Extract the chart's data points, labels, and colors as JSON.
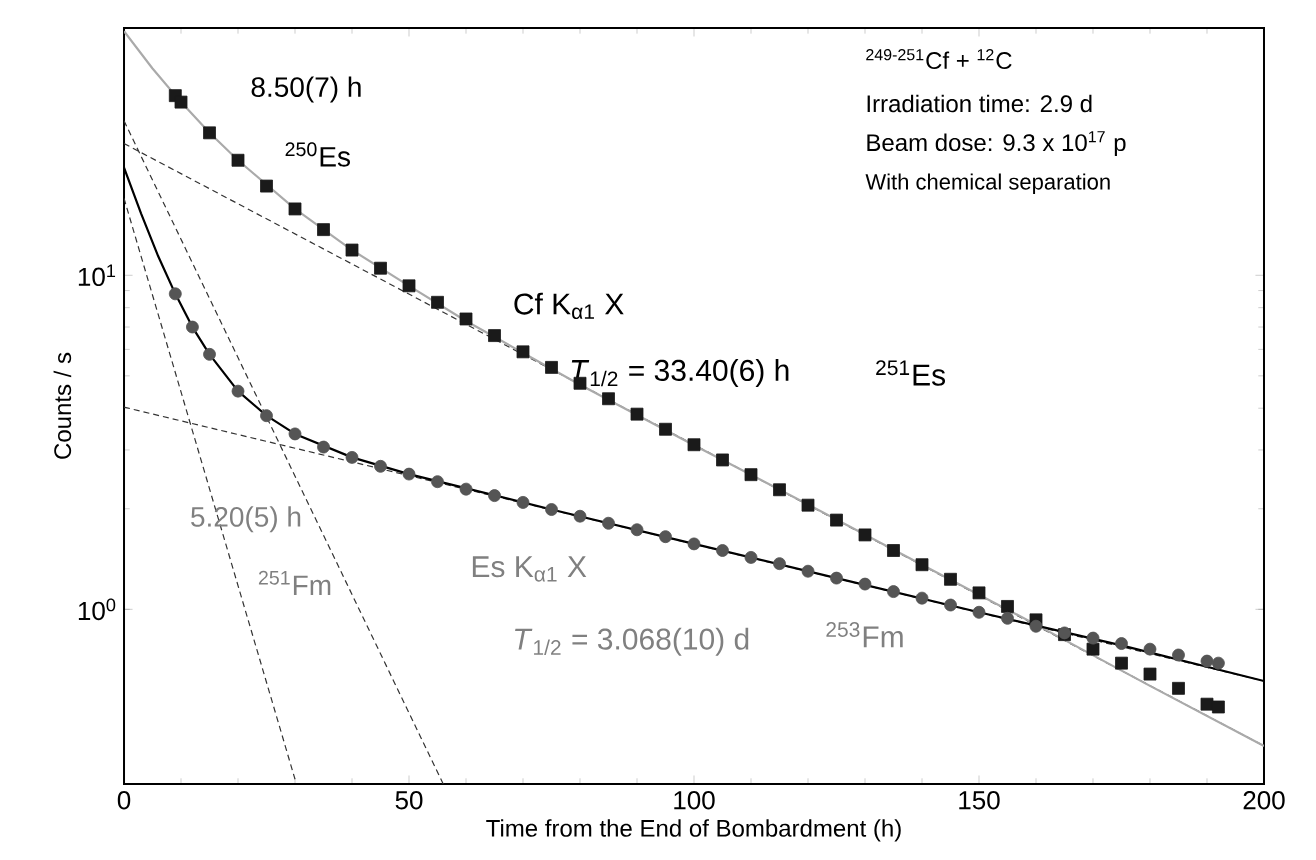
{
  "chart_data": {
    "type": "scatter",
    "xlabel": "Time from the End of Bombardment (h)",
    "ylabel": "Counts / s",
    "log": "y",
    "xlim": [
      0,
      200
    ],
    "ylim": [
      0.3,
      55
    ],
    "xticks": [
      0,
      50,
      100,
      150,
      200
    ],
    "yticks": [
      {
        "value": 1,
        "label": "10$^{0}$"
      },
      {
        "value": 10,
        "label": "10$^{1}$"
      }
    ],
    "series": [
      {
        "type": "line",
        "line_style": "dashed",
        "color": "#333333",
        "x": [
          0,
          56
        ],
        "values": [
          29,
          0.3
        ]
      },
      {
        "type": "line",
        "line_style": "dashed",
        "color": "#333333",
        "x": [
          0,
          200
        ],
        "values": [
          24.8,
          0.39
        ]
      },
      {
        "type": "line",
        "line_style": "dashed",
        "color": "#333333",
        "x": [
          0,
          30
        ],
        "values": [
          17,
          0.31
        ]
      },
      {
        "type": "line",
        "line_style": "dashed",
        "color": "#333333",
        "x": [
          0,
          200
        ],
        "values": [
          4.03,
          0.61
        ]
      },
      {
        "marker": "square",
        "color": "#1a1a1a",
        "x": [
          9,
          10,
          15,
          20,
          25,
          30,
          35,
          40,
          45,
          50,
          55,
          60,
          65,
          70,
          75,
          80,
          85,
          90,
          95,
          100,
          105,
          110,
          115,
          120,
          125,
          130,
          135,
          140,
          145,
          150,
          155,
          160,
          165,
          170,
          175,
          180,
          185,
          190,
          192
        ],
        "values": [
          34.5,
          33.0,
          26.7,
          22.1,
          18.5,
          15.8,
          13.7,
          11.9,
          10.5,
          9.3,
          8.3,
          7.4,
          6.6,
          5.9,
          5.3,
          4.75,
          4.27,
          3.84,
          3.46,
          3.11,
          2.8,
          2.53,
          2.28,
          2.05,
          1.85,
          1.67,
          1.5,
          1.36,
          1.23,
          1.12,
          1.02,
          0.93,
          0.84,
          0.76,
          0.69,
          0.64,
          0.58,
          0.52,
          0.51
        ]
      },
      {
        "marker": "circle",
        "color": "#555555",
        "x": [
          9,
          12,
          15,
          20,
          25,
          30,
          35,
          40,
          45,
          50,
          55,
          60,
          65,
          70,
          75,
          80,
          85,
          90,
          95,
          100,
          105,
          110,
          115,
          120,
          125,
          130,
          135,
          140,
          145,
          150,
          155,
          160,
          165,
          170,
          175,
          180,
          185,
          190,
          192
        ],
        "values": [
          8.8,
          7.0,
          5.8,
          4.5,
          3.8,
          3.35,
          3.06,
          2.85,
          2.68,
          2.54,
          2.41,
          2.29,
          2.19,
          2.09,
          1.99,
          1.9,
          1.81,
          1.73,
          1.65,
          1.57,
          1.5,
          1.43,
          1.37,
          1.3,
          1.24,
          1.19,
          1.13,
          1.08,
          1.03,
          0.98,
          0.94,
          0.89,
          0.85,
          0.82,
          0.79,
          0.76,
          0.73,
          0.7,
          0.69
        ]
      },
      {
        "type": "line",
        "line_style": "solid",
        "color": "#aaaaaa",
        "x": [
          0,
          5,
          10,
          15,
          20,
          30,
          40,
          50,
          60,
          80,
          100,
          120,
          140,
          160,
          180,
          200
        ],
        "values": [
          53.8,
          41.6,
          33.0,
          26.7,
          22.1,
          15.8,
          11.9,
          9.3,
          7.3,
          4.7,
          3.1,
          2.06,
          1.36,
          0.9,
          0.59,
          0.39
        ]
      },
      {
        "type": "line",
        "line_style": "solid",
        "color": "#000000",
        "x": [
          0,
          3,
          6,
          9,
          12,
          15,
          20,
          25,
          30,
          40,
          50,
          75,
          100,
          125,
          150,
          175,
          200
        ],
        "values": [
          21.0,
          15.3,
          11.4,
          8.8,
          7.0,
          5.8,
          4.5,
          3.8,
          3.35,
          2.85,
          2.54,
          1.99,
          1.57,
          1.24,
          0.98,
          0.78,
          0.61
        ]
      }
    ],
    "annotations": [
      "8.50(7) h",
      "$^{250}$Es",
      "Cf K$_{α1}$ X",
      "*T*$_{1/2}$ = 33.40(6) h",
      "$^{251}$Es",
      "$^{249-251}$Cf + $^{12}$C",
      "Irradiation time: 2.9 d",
      "Beam dose: 9.3 x 10$^{17}$ p",
      "With chemical separation",
      "5.20(5) h",
      "$^{251}$Fm",
      "Es K$_{α1}$ X",
      "*T*$_{1/2}$ = 3.068(10) d",
      "$^{253}$Fm"
    ]
  }
}
